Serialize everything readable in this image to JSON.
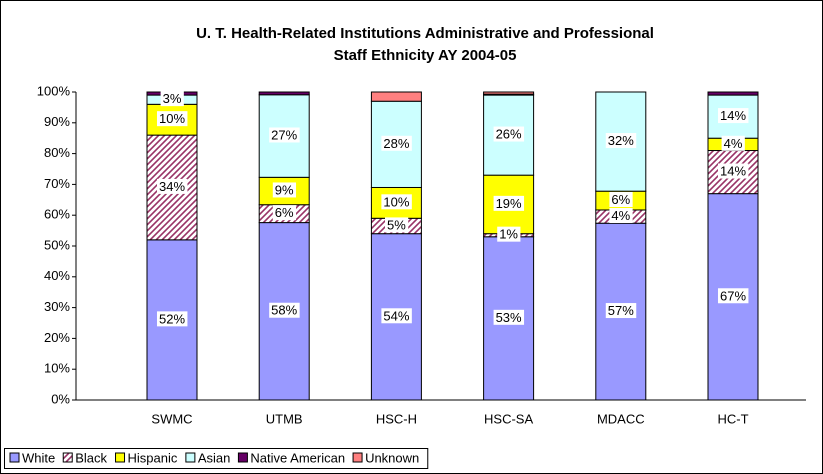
{
  "chart_data": {
    "type": "stacked_bar",
    "title": [
      "U. T. Health-Related Institutions Administrative and Professional",
      "Staff Ethnicity AY 2004-05"
    ],
    "categories": [
      "SWMC",
      "UTMB",
      "HSC-H",
      "HSC-SA",
      "MDACC",
      "HC-T"
    ],
    "series": [
      {
        "name": "White",
        "color": "#9999ff",
        "values": [
          52,
          57.6,
          54,
          53,
          57.4,
          67
        ],
        "value_labels": [
          "52%",
          "58%",
          "54%",
          "53%",
          "57%",
          "67%"
        ]
      },
      {
        "name": "Black",
        "color": "#993366",
        "pattern": "hatch",
        "values": [
          34,
          5.8,
          5,
          1,
          4.3,
          14
        ],
        "value_labels": [
          "34%",
          "6%",
          "5%",
          "1%",
          "4%",
          "14%"
        ]
      },
      {
        "name": "Hispanic",
        "color": "#ffff00",
        "values": [
          10,
          8.9,
          10,
          19,
          6.1,
          4
        ],
        "value_labels": [
          "10%",
          "9%",
          "10%",
          "19%",
          "6%",
          "4%"
        ]
      },
      {
        "name": "Asian",
        "color": "#ccffff",
        "values": [
          3,
          26.8,
          28,
          26,
          32.2,
          14
        ],
        "value_labels": [
          "3%",
          "27%",
          "28%",
          "26%",
          "32%",
          "14%"
        ]
      },
      {
        "name": "Native American",
        "color": "#660066",
        "values": [
          1,
          0.9,
          0,
          0.3,
          0,
          1
        ],
        "value_labels": [
          null,
          null,
          null,
          null,
          null,
          null
        ]
      },
      {
        "name": "Unknown",
        "color": "#ff8080",
        "values": [
          0,
          0,
          3,
          0.7,
          0,
          0
        ],
        "value_labels": [
          null,
          null,
          null,
          null,
          null,
          null
        ]
      }
    ],
    "ylim": [
      0,
      100
    ],
    "yticks": [
      {
        "value": 0,
        "label": "0%"
      },
      {
        "value": 10,
        "label": "10%"
      },
      {
        "value": 20,
        "label": "20%"
      },
      {
        "value": 30,
        "label": "30%"
      },
      {
        "value": 40,
        "label": "40%"
      },
      {
        "value": 50,
        "label": "50%"
      },
      {
        "value": 60,
        "label": "60%"
      },
      {
        "value": 70,
        "label": "70%"
      },
      {
        "value": 80,
        "label": "80%"
      },
      {
        "value": 90,
        "label": "90%"
      },
      {
        "value": 100,
        "label": "100%"
      }
    ],
    "legend": "bottom-left"
  }
}
